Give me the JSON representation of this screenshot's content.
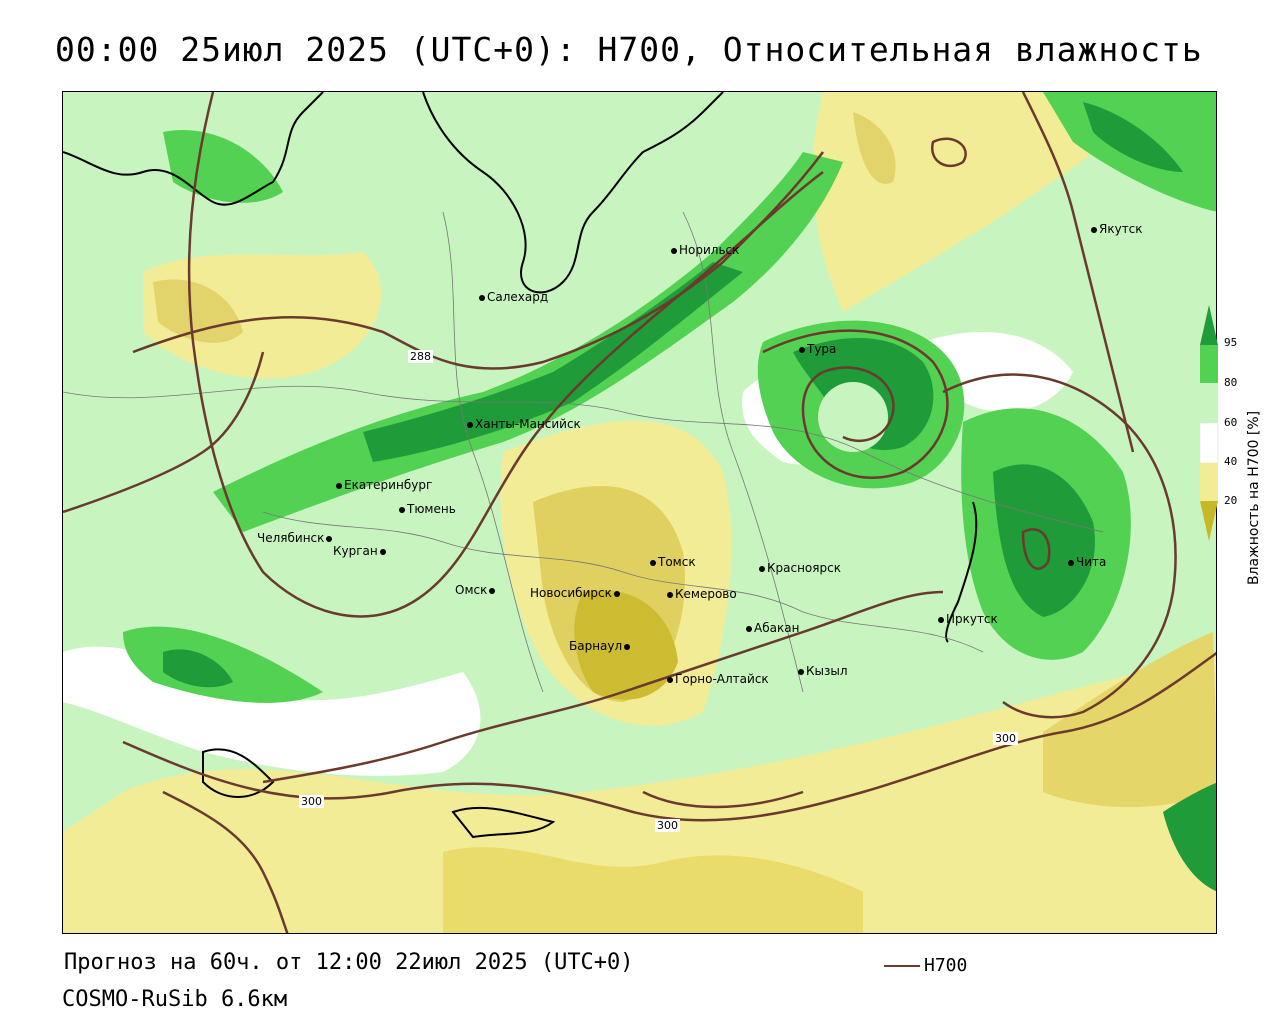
{
  "title": "00:00 25июл 2025 (UTC+0): H700, Относительная влажность",
  "footer": {
    "forecast": "Прогноз на 60ч. от 12:00 22июл 2025 (UTC+0)",
    "model": "COSMO-RuSib 6.6км"
  },
  "legend": {
    "line_label": "H700"
  },
  "colorbar": {
    "title": "Влажность на H700 [%]",
    "ticks": [
      "95",
      "80",
      "60",
      "40",
      "20"
    ],
    "colors": {
      "very_dry": "#c8b828",
      "dry": "#f2ec96",
      "neutral": "#ffffff",
      "moist": "#c8f4c0",
      "wet": "#52d152",
      "very_wet": "#1f9b3a"
    }
  },
  "isolines": {
    "labels": [
      "288",
      "300",
      "300",
      "300"
    ],
    "color": "#6b3a2e"
  },
  "cities": [
    {
      "name": "Якутск"
    },
    {
      "name": "Норильск"
    },
    {
      "name": "Салехард"
    },
    {
      "name": "Тура"
    },
    {
      "name": "Ханты-Мансийск"
    },
    {
      "name": "Екатеринбург"
    },
    {
      "name": "Тюмень"
    },
    {
      "name": "Челябинск"
    },
    {
      "name": "Курган"
    },
    {
      "name": "Омск"
    },
    {
      "name": "Томск"
    },
    {
      "name": "Новосибирск"
    },
    {
      "name": "Кемерово"
    },
    {
      "name": "Красноярск"
    },
    {
      "name": "Барнаул"
    },
    {
      "name": "Абакан"
    },
    {
      "name": "Горно-Алтайск"
    },
    {
      "name": "Кызыл"
    },
    {
      "name": "Иркутск"
    },
    {
      "name": "Чита"
    }
  ]
}
